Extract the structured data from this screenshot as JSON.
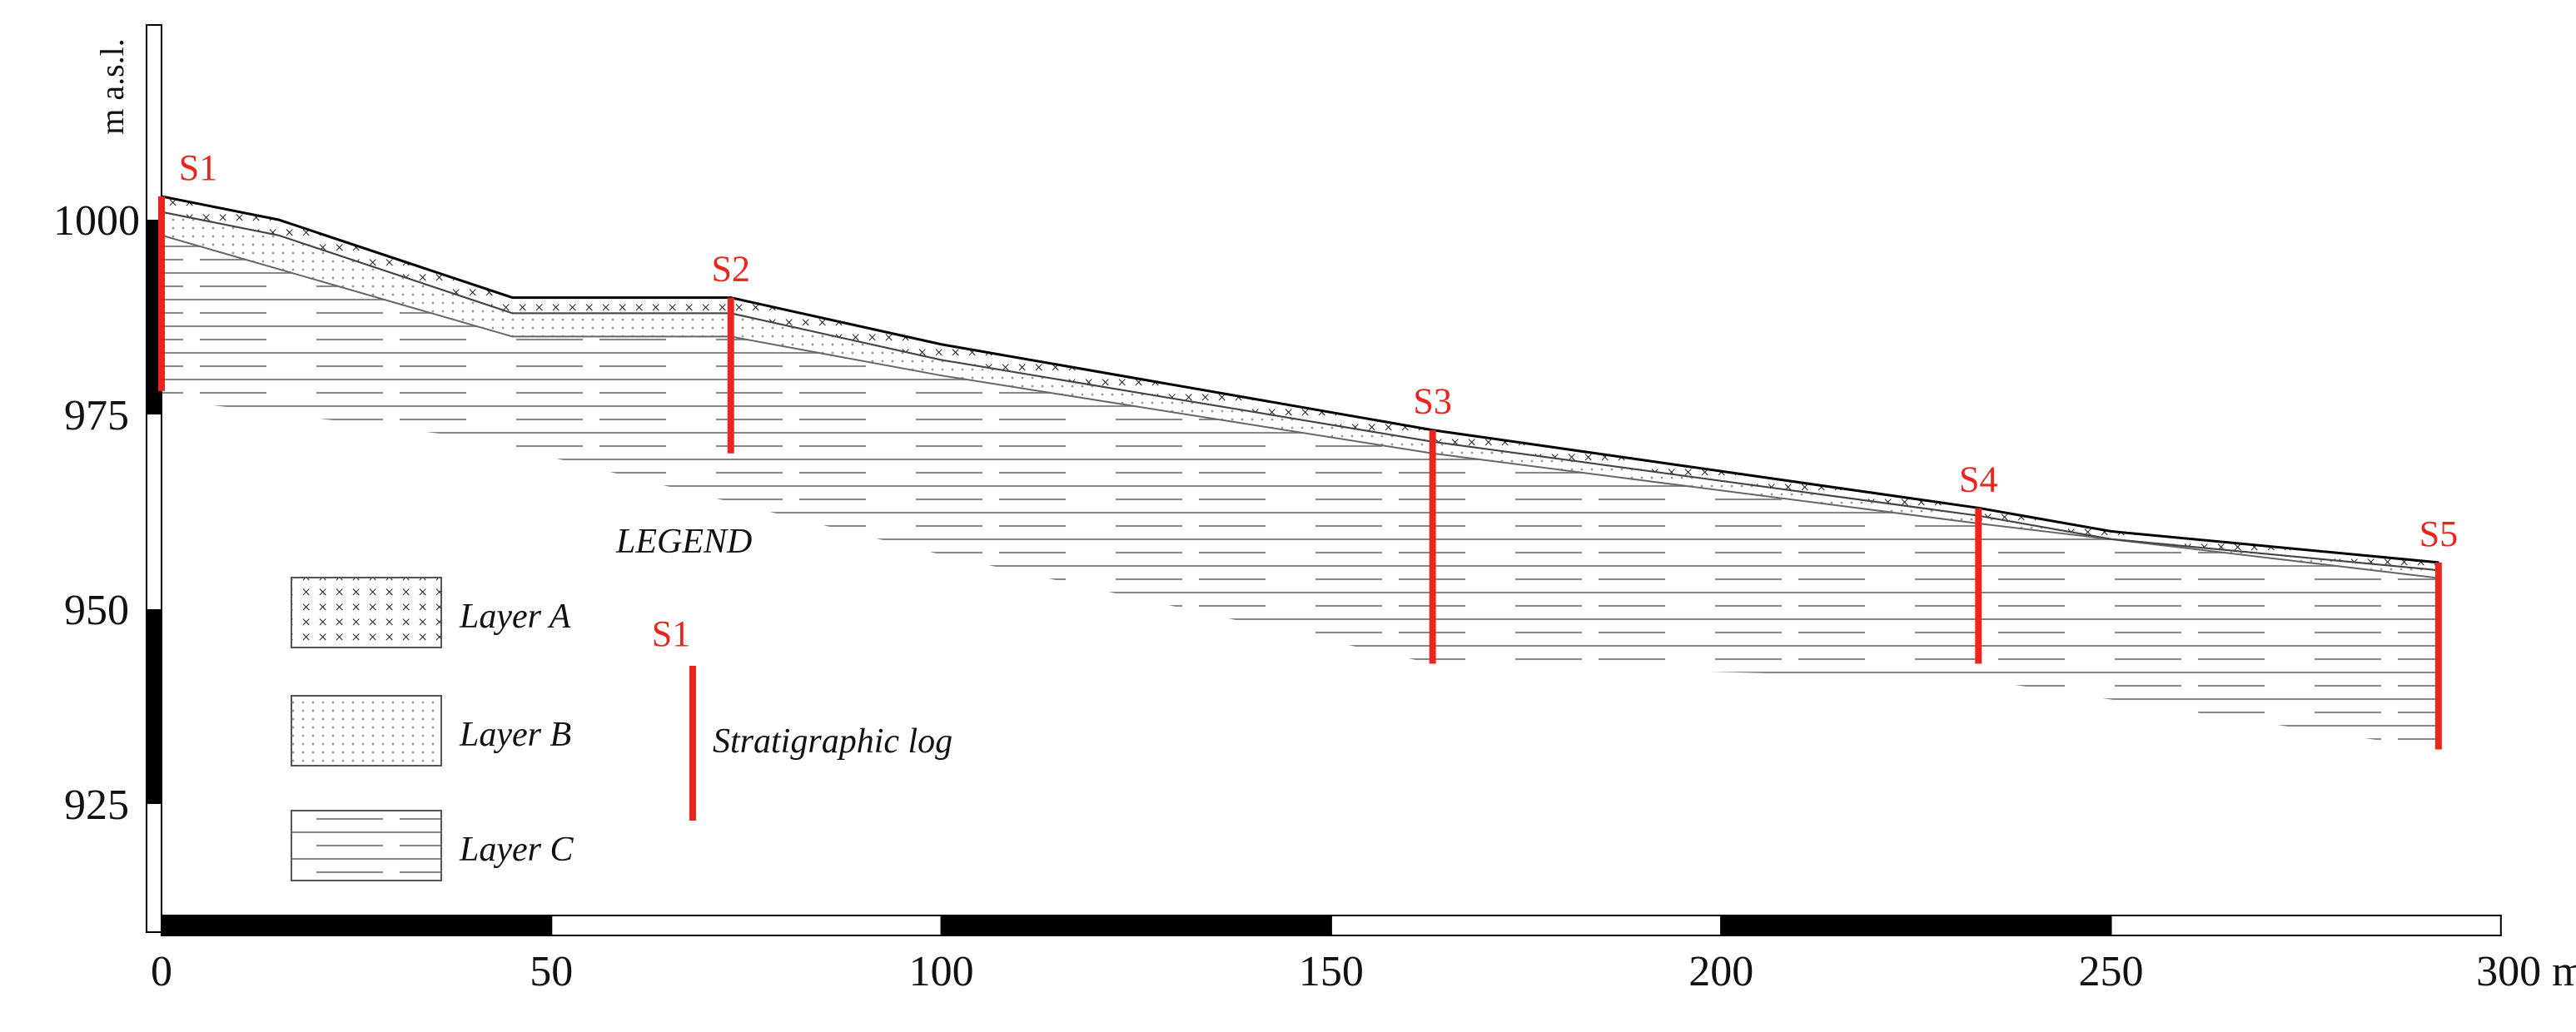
{
  "axes": {
    "y_label": "m a.s.l.",
    "y_ticks": [
      "1000",
      "975",
      "950",
      "925"
    ],
    "x_ticks": [
      "0",
      "50",
      "100",
      "150",
      "200",
      "250",
      "300 m"
    ]
  },
  "logs": [
    {
      "label": "S1"
    },
    {
      "label": "S2"
    },
    {
      "label": "S3"
    },
    {
      "label": "S4"
    },
    {
      "label": "S5"
    }
  ],
  "legend": {
    "title": "LEGEND",
    "items": [
      "Layer A",
      "Layer B",
      "Layer C"
    ],
    "log_label": "S1",
    "log_text": "Stratigraphic log"
  }
}
